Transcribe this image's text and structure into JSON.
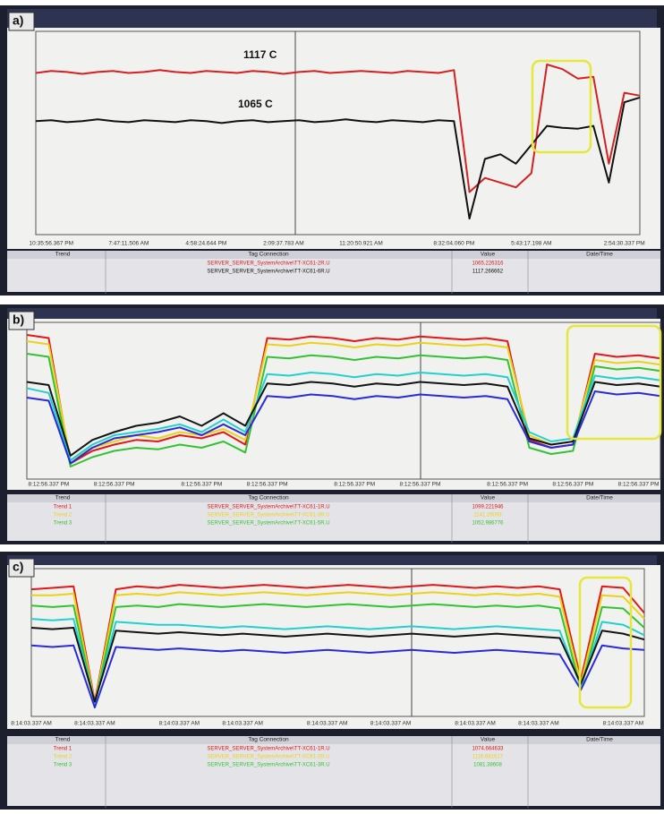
{
  "chart_data": [
    {
      "type": "line",
      "title": "a)",
      "categories": [
        null,
        "10:35:56.367 PM",
        null,
        null,
        null,
        null,
        "7:47:11.506 AM",
        null,
        null,
        null,
        null,
        "4:58:24.644 PM",
        null,
        null,
        null,
        null,
        "2:09:37.783 AM",
        null,
        null,
        null,
        null,
        "11:20:50.921 AM",
        null,
        null,
        null,
        null,
        null,
        "8:32:04.060 PM",
        null,
        null,
        null,
        null,
        "5:43:17.198 AM",
        null,
        null,
        null,
        null,
        null,
        "2:54:30.337 PM",
        null
      ],
      "ylim": [
        945,
        1160
      ],
      "annotations": [
        "1117 C",
        "1065 C"
      ],
      "series": [
        {
          "color": "#d42020",
          "values": [
            1116,
            1118,
            1117,
            1115,
            1117,
            1118,
            1116,
            1117,
            1119,
            1117,
            1116,
            1118,
            1117,
            1116,
            1118,
            1117,
            1115,
            1117,
            1118,
            1116,
            1117,
            1118,
            1117,
            1116,
            1118,
            1117,
            1116,
            1119,
            990,
            1005,
            1000,
            995,
            1010,
            1125,
            1120,
            1110,
            1112,
            1020,
            1095,
            1092
          ]
        },
        {
          "color": "#111111",
          "values": [
            1065,
            1066,
            1064,
            1065,
            1067,
            1065,
            1064,
            1066,
            1065,
            1064,
            1066,
            1065,
            1063,
            1065,
            1066,
            1064,
            1065,
            1066,
            1064,
            1065,
            1067,
            1065,
            1064,
            1066,
            1065,
            1064,
            1066,
            1065,
            962,
            1025,
            1030,
            1020,
            1040,
            1060,
            1058,
            1057,
            1060,
            1000,
            1085,
            1090
          ]
        }
      ]
    },
    {
      "type": "line",
      "title": "b)",
      "categories": [
        null,
        "8:12:56.337 PM",
        null,
        null,
        "8:12:56.337 PM",
        null,
        null,
        null,
        "8:12:56.337 PM",
        null,
        null,
        "8:12:56.337 PM",
        null,
        null,
        null,
        "8:12:56.337 PM",
        null,
        null,
        "8:12:56.337 PM",
        null,
        null,
        null,
        "8:12:56.337 PM",
        null,
        null,
        "8:12:56.337 PM",
        null,
        null,
        "8:12:56.337 PM",
        null
      ],
      "ylim": [
        0,
        100
      ],
      "series": [
        {
          "color": "#e01818",
          "values": [
            92,
            90,
            10,
            18,
            22,
            25,
            24,
            28,
            26,
            30,
            22,
            90,
            89,
            91,
            90,
            88,
            90,
            89,
            91,
            90,
            89,
            90,
            88,
            25,
            20,
            22,
            80,
            78,
            79,
            77
          ]
        },
        {
          "color": "#e8d21a",
          "values": [
            88,
            86,
            12,
            20,
            24,
            28,
            26,
            30,
            28,
            32,
            25,
            86,
            85,
            87,
            86,
            84,
            86,
            85,
            87,
            86,
            85,
            86,
            84,
            28,
            22,
            24,
            76,
            74,
            75,
            73
          ]
        },
        {
          "color": "#34c234",
          "values": [
            80,
            78,
            8,
            14,
            18,
            20,
            19,
            22,
            20,
            24,
            17,
            78,
            77,
            79,
            78,
            76,
            78,
            77,
            79,
            78,
            77,
            78,
            76,
            20,
            16,
            18,
            72,
            70,
            71,
            69
          ]
        },
        {
          "color": "#22d0d0",
          "values": [
            58,
            55,
            12,
            22,
            28,
            30,
            32,
            35,
            30,
            38,
            30,
            67,
            66,
            68,
            67,
            65,
            67,
            66,
            68,
            67,
            66,
            67,
            65,
            30,
            24,
            26,
            66,
            64,
            65,
            63
          ]
        },
        {
          "color": "#141414",
          "values": [
            62,
            60,
            15,
            25,
            30,
            34,
            36,
            40,
            34,
            42,
            34,
            61,
            60,
            62,
            61,
            59,
            61,
            60,
            62,
            61,
            60,
            61,
            59,
            26,
            22,
            24,
            62,
            60,
            61,
            59
          ]
        },
        {
          "color": "#2a2ad8",
          "values": [
            52,
            50,
            10,
            20,
            26,
            28,
            30,
            33,
            28,
            35,
            28,
            53,
            52,
            54,
            53,
            51,
            53,
            52,
            54,
            53,
            52,
            53,
            51,
            24,
            20,
            22,
            56,
            54,
            55,
            53
          ]
        }
      ]
    },
    {
      "type": "line",
      "title": "c)",
      "categories": [
        "8:14:03.337 AM",
        null,
        null,
        "8:14:03.337 AM",
        null,
        null,
        null,
        "8:14:03.337 AM",
        null,
        null,
        "8:14:03.337 AM",
        null,
        null,
        null,
        "8:14:03.337 AM",
        null,
        null,
        "8:14:03.337 AM",
        null,
        null,
        null,
        "8:14:03.337 AM",
        null,
        null,
        "8:14:03.337 AM",
        null,
        null,
        null,
        "8:14:03.337 AM",
        null
      ],
      "ylim": [
        0,
        100
      ],
      "series": [
        {
          "color": "#e01818",
          "values": [
            86,
            87,
            88,
            10,
            86,
            88,
            87,
            89,
            88,
            87,
            88,
            89,
            88,
            87,
            88,
            89,
            88,
            87,
            88,
            89,
            88,
            87,
            88,
            87,
            88,
            86,
            25,
            88,
            87,
            70
          ]
        },
        {
          "color": "#e8d21a",
          "values": [
            82,
            82,
            83,
            9,
            82,
            83,
            82,
            84,
            83,
            82,
            83,
            84,
            83,
            82,
            83,
            84,
            83,
            82,
            83,
            84,
            83,
            82,
            83,
            82,
            83,
            81,
            22,
            82,
            81,
            66
          ]
        },
        {
          "color": "#34c234",
          "values": [
            75,
            74,
            75,
            8,
            74,
            75,
            74,
            76,
            75,
            74,
            75,
            76,
            75,
            74,
            75,
            76,
            75,
            74,
            75,
            76,
            75,
            74,
            75,
            74,
            75,
            73,
            18,
            74,
            73,
            60
          ]
        },
        {
          "color": "#22d0d0",
          "values": [
            66,
            65,
            66,
            9,
            64,
            63,
            62,
            62,
            61,
            60,
            61,
            60,
            59,
            60,
            61,
            60,
            59,
            60,
            61,
            60,
            59,
            60,
            61,
            60,
            59,
            58,
            20,
            64,
            62,
            55
          ]
        },
        {
          "color": "#141414",
          "values": [
            60,
            59,
            60,
            10,
            58,
            57,
            56,
            57,
            56,
            55,
            56,
            55,
            54,
            55,
            56,
            55,
            54,
            55,
            56,
            55,
            54,
            55,
            56,
            55,
            54,
            53,
            22,
            58,
            56,
            52
          ]
        },
        {
          "color": "#2a2ad8",
          "values": [
            48,
            47,
            48,
            6,
            47,
            46,
            45,
            46,
            45,
            44,
            45,
            44,
            43,
            44,
            45,
            44,
            43,
            44,
            45,
            44,
            43,
            44,
            45,
            44,
            43,
            42,
            18,
            48,
            46,
            45
          ]
        }
      ]
    }
  ],
  "tables": [
    {
      "header": [
        "Trend",
        "Tag Connection",
        "Value",
        "Date/Time"
      ],
      "rows": [
        [
          "",
          "SERVER_SERVER_SystemArchive\\TT-XC61-2R.U",
          "1065.226316",
          ""
        ],
        [
          "",
          "SERVER_SERVER_SystemArchive\\TT-XC61-6R.U",
          "1117.266662",
          ""
        ]
      ]
    },
    {
      "header": [
        "Trend",
        "Tag Connection",
        "Value",
        "Date/Time"
      ],
      "rows": [
        [
          "Trend 1",
          "SERVER_SERVER_SystemArchive\\TT-XC61-1R.U",
          "1099.221946",
          ""
        ],
        [
          "Trend 2",
          "SERVER_SERVER_SystemArchive\\TT-XC61-3R.U",
          "1141.29093",
          ""
        ],
        [
          "Trend 3",
          "SERVER_SERVER_SystemArchive\\TT-XC61-5R.U",
          "1052.986776",
          ""
        ]
      ]
    },
    {
      "header": [
        "Trend",
        "Tag Connection",
        "Value",
        "Date/Time"
      ],
      "rows": [
        [
          "Trend 1",
          "SERVER_SERVER_SystemArchive\\TT-XC61-1R.U",
          "1074.664633",
          ""
        ],
        [
          "Trend 2",
          "SERVER_SERVER_SystemArchive\\TT-XC61-2R.U",
          "1116.681617",
          ""
        ],
        [
          "Trend 3",
          "SERVER_SERVER_SystemArchive\\TT-XC61-3R.U",
          "1081.38608",
          ""
        ]
      ]
    }
  ]
}
